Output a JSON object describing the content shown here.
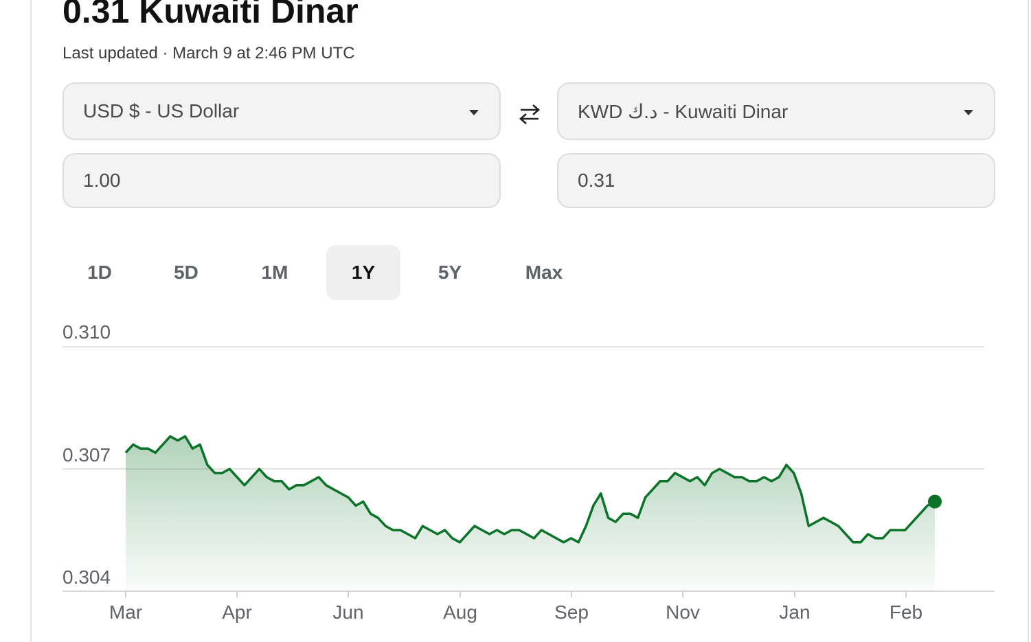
{
  "header": {
    "headline": "0.31 Kuwaiti Dinar",
    "last_updated": "Last updated · March 9 at 2:46 PM UTC"
  },
  "converter": {
    "from_currency": "USD $ - US Dollar",
    "to_currency": "KWD د.ك - Kuwaiti Dinar",
    "from_amount": "1.00",
    "to_amount": "0.31",
    "swap_icon": "swap-arrows-icon"
  },
  "range_tabs": [
    {
      "label": "1D",
      "active": false
    },
    {
      "label": "5D",
      "active": false
    },
    {
      "label": "1M",
      "active": false
    },
    {
      "label": "1Y",
      "active": true
    },
    {
      "label": "5Y",
      "active": false
    },
    {
      "label": "Max",
      "active": false
    }
  ],
  "colors": {
    "line": "#0a7327",
    "fill": "#0a7327",
    "grid": "#e3e3e3",
    "tab_active_bg": "#efefef"
  },
  "chart_data": {
    "type": "area",
    "title": "",
    "xlabel": "",
    "ylabel": "",
    "ylim": [
      0.304,
      0.31
    ],
    "y_ticks": [
      "0.310",
      "0.307",
      "0.304"
    ],
    "x_ticks": [
      "Mar",
      "Apr",
      "Jun",
      "Aug",
      "Sep",
      "Nov",
      "Jan",
      "Feb"
    ],
    "grid": true,
    "end_marker": true,
    "series": [
      {
        "values": [
          0.3074,
          0.3076,
          0.3075,
          0.3075,
          0.3074,
          0.3076,
          0.3078,
          0.3077,
          0.3078,
          0.3075,
          0.3076,
          0.3071,
          0.3069,
          0.3069,
          0.307,
          0.3068,
          0.3066,
          0.3068,
          0.307,
          0.3068,
          0.3067,
          0.3067,
          0.3065,
          0.3066,
          0.3066,
          0.3067,
          0.3068,
          0.3066,
          0.3065,
          0.3064,
          0.3063,
          0.3061,
          0.3062,
          0.3059,
          0.3058,
          0.3056,
          0.3055,
          0.3055,
          0.3054,
          0.3053,
          0.3056,
          0.3055,
          0.3054,
          0.3055,
          0.3053,
          0.3052,
          0.3054,
          0.3056,
          0.3055,
          0.3054,
          0.3055,
          0.3054,
          0.3055,
          0.3055,
          0.3054,
          0.3053,
          0.3055,
          0.3054,
          0.3053,
          0.3052,
          0.3053,
          0.3052,
          0.3056,
          0.3061,
          0.3064,
          0.3058,
          0.3057,
          0.3059,
          0.3059,
          0.3058,
          0.3063,
          0.3065,
          0.3067,
          0.3067,
          0.3069,
          0.3068,
          0.3067,
          0.3068,
          0.3066,
          0.3069,
          0.307,
          0.3069,
          0.3068,
          0.3068,
          0.3067,
          0.3067,
          0.3068,
          0.3067,
          0.3068,
          0.3071,
          0.3069,
          0.3064,
          0.3056,
          0.3057,
          0.3058,
          0.3057,
          0.3056,
          0.3054,
          0.3052,
          0.3052,
          0.3054,
          0.3053,
          0.3053,
          0.3055,
          0.3055,
          0.3055,
          0.3057,
          0.3059,
          0.3061,
          0.3062
        ]
      }
    ]
  }
}
